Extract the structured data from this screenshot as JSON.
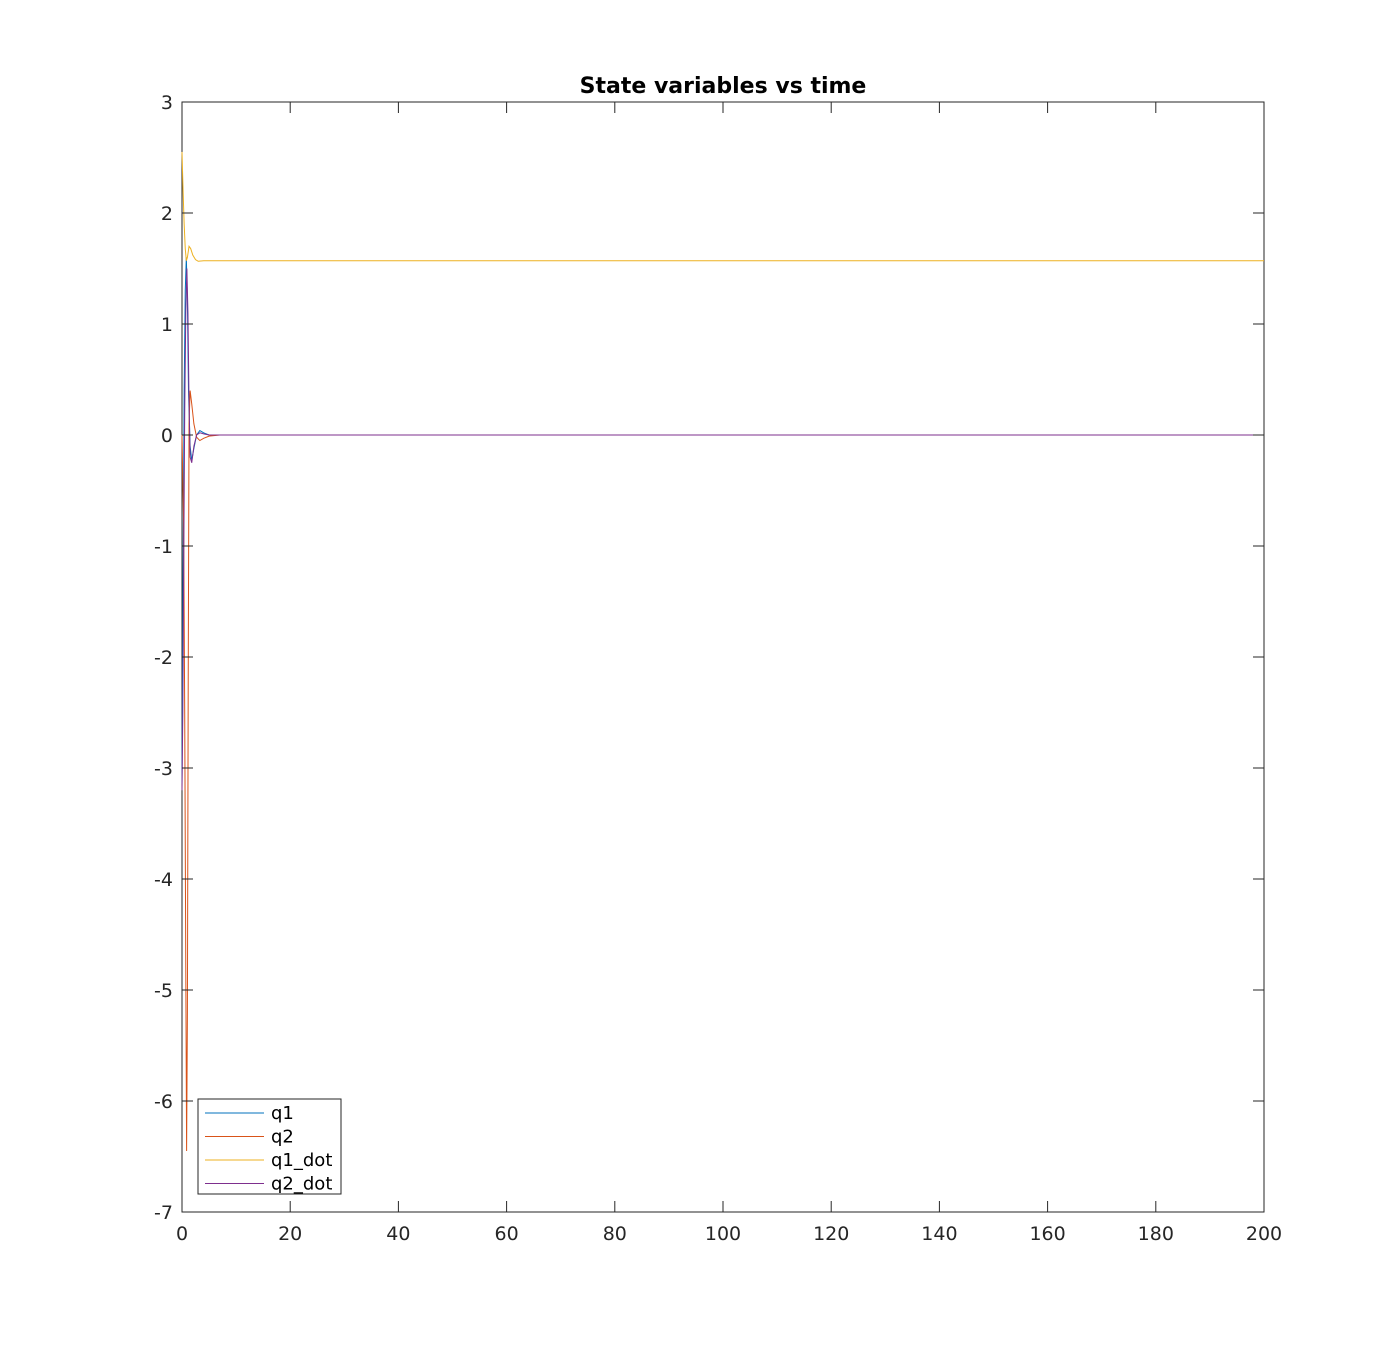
{
  "chart_data": {
    "type": "line",
    "title": "State variables vs time",
    "xlabel": "",
    "ylabel": "",
    "xlim": [
      0,
      200
    ],
    "ylim": [
      -7,
      3
    ],
    "xticks": [
      "0",
      "20",
      "40",
      "60",
      "80",
      "100",
      "120",
      "140",
      "160",
      "180",
      "200"
    ],
    "yticks": [
      "3",
      "2",
      "1",
      "0",
      "-1",
      "-2",
      "-3",
      "-4",
      "-5",
      "-6",
      "-7"
    ],
    "grid": false,
    "legend_position": "bottom-left",
    "series": [
      {
        "name": "q1",
        "color": "#0072BD",
        "x": [
          0,
          0.2,
          0.4,
          0.6,
          0.8,
          1.0,
          1.2,
          1.5,
          1.8,
          2.2,
          2.7,
          3.3,
          4.0,
          5.0,
          7.0,
          10,
          200
        ],
        "y": [
          -3.14,
          -1.2,
          0.4,
          1.3,
          1.6,
          1.2,
          0.4,
          -0.1,
          -0.23,
          -0.12,
          0.0,
          0.04,
          0.02,
          0.0,
          0.0,
          0.0,
          0.0
        ]
      },
      {
        "name": "q2",
        "color": "#D95319",
        "x": [
          0,
          0.3,
          0.5,
          0.7,
          0.85,
          1.0,
          1.15,
          1.3,
          1.5,
          1.8,
          2.2,
          2.7,
          3.3,
          4.0,
          5.0,
          7.0,
          10,
          200
        ],
        "y": [
          0.0,
          -0.8,
          -2.5,
          -4.8,
          -6.45,
          -5.2,
          -2.2,
          0.1,
          0.4,
          0.28,
          0.1,
          -0.02,
          -0.05,
          -0.03,
          -0.01,
          0.0,
          0.0,
          0.0
        ]
      },
      {
        "name": "q1_dot",
        "color": "#EDB120",
        "x": [
          0,
          0.2,
          0.4,
          0.6,
          0.8,
          1.0,
          1.3,
          1.6,
          2.0,
          2.5,
          3.0,
          4.0,
          6.0,
          10,
          200
        ],
        "y": [
          2.55,
          2.2,
          1.9,
          1.68,
          1.57,
          1.6,
          1.7,
          1.68,
          1.62,
          1.58,
          1.565,
          1.57,
          1.57,
          1.57,
          1.57
        ]
      },
      {
        "name": "q2_dot",
        "color": "#7E2F8E",
        "x": [
          0,
          0.15,
          0.3,
          0.5,
          0.7,
          0.9,
          1.1,
          1.3,
          1.5,
          1.8,
          2.2,
          2.7,
          3.3,
          4.0,
          5.0,
          7.0,
          10,
          200
        ],
        "y": [
          -3.2,
          -2.5,
          -1.3,
          0.2,
          1.1,
          1.5,
          1.1,
          0.3,
          -0.2,
          -0.25,
          -0.1,
          0.0,
          0.02,
          0.01,
          0.0,
          0.0,
          0.0,
          0.0
        ]
      }
    ]
  }
}
